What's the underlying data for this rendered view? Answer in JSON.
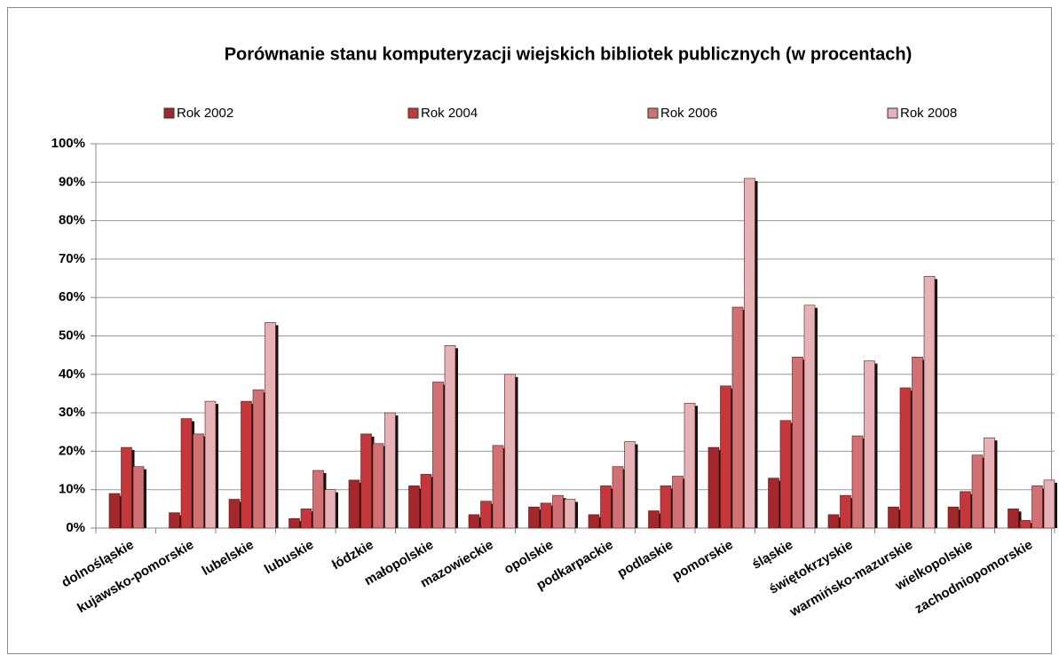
{
  "chart_data": {
    "type": "bar",
    "title": "Porównanie stanu komputeryzacji wiejskich bibliotek publicznych (w procentach)",
    "categories": [
      "dolnośląskie",
      "kujawsko-pomorskie",
      "lubelskie",
      "lubuskie",
      "łódzkie",
      "małopolskie",
      "mazowieckie",
      "opolskie",
      "podkarpackie",
      "podlaskie",
      "pomorskie",
      "śląskie",
      "świętokrzyskie",
      "warmińsko-mazurskie",
      "wielkopolskie",
      "zachodniopomorskie"
    ],
    "series": [
      {
        "name": "Rok 2002",
        "color": "#a3272b",
        "values": [
          9,
          4,
          7.5,
          2.5,
          12.5,
          11,
          3.5,
          5.5,
          3.5,
          4.5,
          21,
          13,
          3.5,
          5.5,
          5.5,
          5
        ]
      },
      {
        "name": "Rok 2004",
        "color": "#c6373c",
        "values": [
          21,
          28.5,
          33,
          5,
          24.5,
          14,
          7,
          6.5,
          11,
          11,
          37,
          28,
          8.5,
          36.5,
          9.5,
          2
        ]
      },
      {
        "name": "Rok 2006",
        "color": "#d27173",
        "values": [
          16,
          24.5,
          36,
          15,
          22,
          38,
          21.5,
          8.5,
          16,
          13.5,
          57.5,
          44.5,
          24,
          44.5,
          19,
          11
        ]
      },
      {
        "name": "Rok 2008",
        "color": "#e6b2b6",
        "values": [
          null,
          33,
          53.5,
          10,
          30,
          47.5,
          40,
          7.5,
          22.5,
          32.5,
          91,
          58,
          43.5,
          65.5,
          23.5,
          12.5
        ]
      }
    ],
    "ylim": [
      0,
      100
    ],
    "yticks": [
      {
        "value": 0,
        "label": "0%"
      },
      {
        "value": 10,
        "label": "10%"
      },
      {
        "value": 20,
        "label": "20%"
      },
      {
        "value": 30,
        "label": "30%"
      },
      {
        "value": 40,
        "label": "40%"
      },
      {
        "value": 50,
        "label": "50%"
      },
      {
        "value": 60,
        "label": "60%"
      },
      {
        "value": 70,
        "label": "70%"
      },
      {
        "value": 80,
        "label": "80%"
      },
      {
        "value": 90,
        "label": "90%"
      },
      {
        "value": 100,
        "label": "100%"
      }
    ],
    "grid": true,
    "legend": "top"
  }
}
